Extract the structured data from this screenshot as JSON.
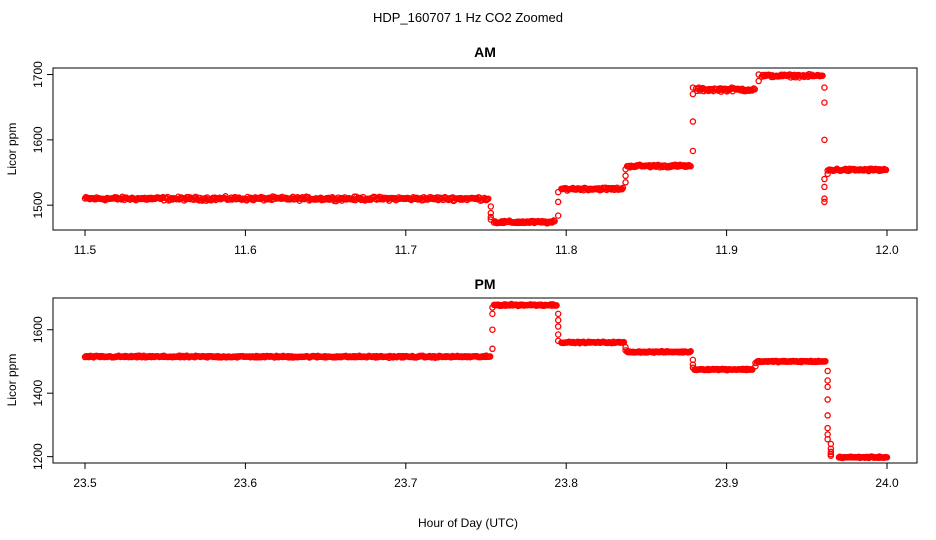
{
  "figure": {
    "title": "HDP_160707  1 Hz CO2 Zoomed",
    "xlabel": "Hour of Day (UTC)",
    "marker_color": "#ff0000"
  },
  "chart_data": [
    {
      "type": "scatter",
      "title": "AM",
      "ylabel": "Licor ppm",
      "xlim": [
        11.5,
        12.0
      ],
      "ylim": [
        1462,
        1710
      ],
      "xticks": [
        "11.5",
        "11.6",
        "11.7",
        "11.8",
        "11.9",
        "12.0"
      ],
      "yticks": [
        "1500",
        "1600",
        "1700"
      ],
      "segments": [
        {
          "x": [
            11.5,
            11.752
          ],
          "y": 1510,
          "noise": 4
        },
        {
          "x": [
            11.755,
            11.793
          ],
          "y": 1474,
          "noise": 3
        },
        {
          "x": [
            11.797,
            11.836
          ],
          "y": 1525,
          "noise": 3
        },
        {
          "x": [
            11.838,
            11.878
          ],
          "y": 1560,
          "noise": 3
        },
        {
          "x": [
            11.881,
            11.918
          ],
          "y": 1677,
          "noise": 4
        },
        {
          "x": [
            11.922,
            11.96
          ],
          "y": 1698,
          "noise": 3
        },
        {
          "x": [
            11.964,
            12.0
          ],
          "y": 1554,
          "noise": 3
        }
      ],
      "transitions": [
        {
          "x": 11.753,
          "y": [
            1498,
            1488,
            1482,
            1478
          ]
        },
        {
          "x": 11.795,
          "y": [
            1484,
            1505,
            1520
          ]
        },
        {
          "x": 11.837,
          "y": [
            1535,
            1545,
            1555
          ]
        },
        {
          "x": 11.879,
          "y": [
            1583,
            1628,
            1670,
            1680
          ]
        },
        {
          "x": 11.92,
          "y": [
            1690,
            1700
          ]
        },
        {
          "x": 11.961,
          "y": [
            1680,
            1657,
            1600,
            1540,
            1528,
            1510,
            1505
          ]
        },
        {
          "x": 11.963,
          "y": [
            1548,
            1553
          ]
        }
      ]
    },
    {
      "type": "scatter",
      "title": "PM",
      "ylabel": "Licor ppm",
      "xlim": [
        23.5,
        24.0
      ],
      "ylim": [
        1180,
        1700
      ],
      "xticks": [
        "23.5",
        "23.6",
        "23.7",
        "23.8",
        "23.9",
        "24.0"
      ],
      "yticks": [
        "1200",
        "1400",
        "1600"
      ],
      "segments": [
        {
          "x": [
            23.5,
            23.753
          ],
          "y": 1515,
          "noise": 4
        },
        {
          "x": [
            23.755,
            23.794
          ],
          "y": 1678,
          "noise": 4
        },
        {
          "x": [
            23.797,
            23.836
          ],
          "y": 1560,
          "noise": 3
        },
        {
          "x": [
            23.838,
            23.878
          ],
          "y": 1530,
          "noise": 3
        },
        {
          "x": [
            23.88,
            23.916
          ],
          "y": 1475,
          "noise": 3
        },
        {
          "x": [
            23.919,
            23.962
          ],
          "y": 1500,
          "noise": 3
        },
        {
          "x": [
            23.97,
            24.0
          ],
          "y": 1198,
          "noise": 3
        }
      ],
      "transitions": [
        {
          "x": 23.754,
          "y": [
            1540,
            1600,
            1650,
            1670
          ]
        },
        {
          "x": 23.795,
          "y": [
            1650,
            1630,
            1610,
            1585,
            1565
          ]
        },
        {
          "x": 23.837,
          "y": [
            1545,
            1535
          ]
        },
        {
          "x": 23.879,
          "y": [
            1505,
            1490,
            1480
          ]
        },
        {
          "x": 23.918,
          "y": [
            1485,
            1495
          ]
        },
        {
          "x": 23.963,
          "y": [
            1470,
            1440,
            1420,
            1380,
            1330,
            1290,
            1270,
            1255
          ]
        },
        {
          "x": 23.965,
          "y": [
            1240,
            1225,
            1215,
            1208,
            1203
          ]
        }
      ]
    }
  ]
}
